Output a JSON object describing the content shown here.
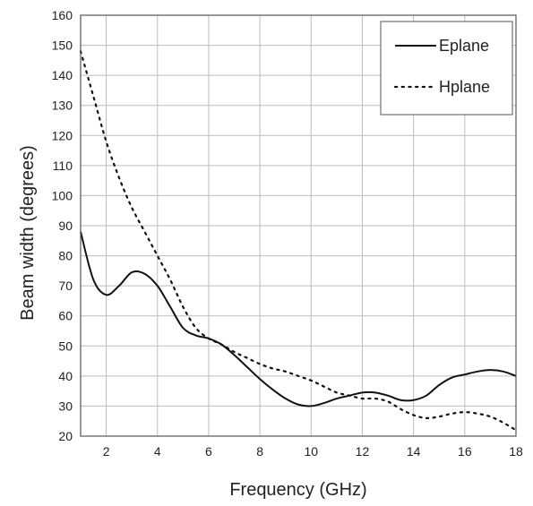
{
  "chart_data": {
    "type": "line",
    "title": "",
    "xlabel": "Frequency (GHz)",
    "ylabel": "Beam width (degrees)",
    "xlim": [
      1,
      18
    ],
    "ylim": [
      20,
      160
    ],
    "x_ticks": [
      2,
      4,
      6,
      8,
      10,
      12,
      14,
      16,
      18
    ],
    "y_ticks": [
      20,
      30,
      40,
      50,
      60,
      70,
      80,
      90,
      100,
      110,
      120,
      130,
      140,
      150,
      160
    ],
    "grid": true,
    "legend": "top-right",
    "series": [
      {
        "name": "Eplane",
        "style": "solid",
        "color": "#111111",
        "x": [
          1,
          1.5,
          2,
          2.5,
          3,
          3.5,
          4,
          4.5,
          5,
          5.5,
          6,
          6.5,
          7,
          7.5,
          8,
          8.5,
          9,
          9.5,
          10,
          10.5,
          11,
          11.5,
          12,
          12.5,
          13,
          13.5,
          14,
          14.5,
          15,
          15.5,
          16,
          16.5,
          17,
          17.5,
          18
        ],
        "y": [
          88,
          72,
          67,
          70,
          74.5,
          74,
          70,
          63,
          56,
          53.5,
          52.5,
          50.5,
          47,
          43,
          39,
          35.5,
          32.5,
          30.5,
          30,
          31,
          32.5,
          33.5,
          34.5,
          34.5,
          33.5,
          32,
          32,
          33.5,
          37,
          39.5,
          40.5,
          41.5,
          42,
          41.5,
          40
        ]
      },
      {
        "name": "Hplane",
        "style": "dotted",
        "color": "#111111",
        "x": [
          1,
          1.5,
          2,
          2.5,
          3,
          3.5,
          4,
          4.5,
          5,
          5.5,
          6,
          6.5,
          7,
          7.5,
          8,
          8.5,
          9,
          9.5,
          10,
          10.5,
          11,
          11.5,
          12,
          12.5,
          13,
          13.5,
          14,
          14.5,
          15,
          15.5,
          16,
          16.5,
          17,
          17.5,
          18
        ],
        "y": [
          148,
          133,
          118,
          106,
          96,
          88,
          80,
          72,
          63,
          56,
          52.5,
          50.5,
          48,
          46,
          44,
          42.5,
          41.5,
          40,
          38.5,
          36.5,
          34.5,
          33.5,
          32.5,
          32.5,
          31.5,
          29,
          27,
          26,
          26.5,
          27.5,
          28,
          27.5,
          26.5,
          24.5,
          22
        ]
      }
    ]
  }
}
